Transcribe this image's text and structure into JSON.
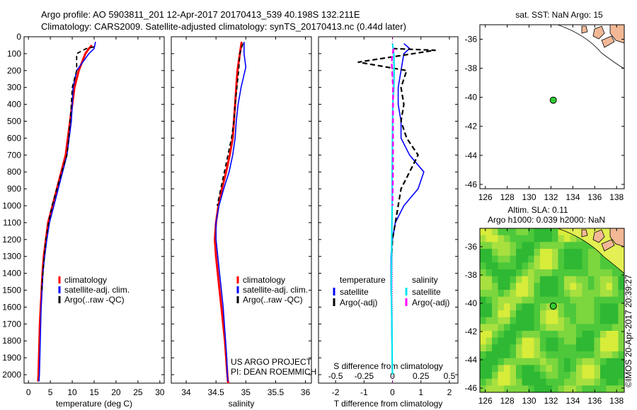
{
  "header": {
    "line1": "Argo profile: AO 5903811_201 12-Apr-2017 20170413_539 40.198S 132.211E",
    "line2": "Climatology: CARS2009. Satellite-adjusted climatology: synTS_20170413.nc (0.44d later)"
  },
  "project": {
    "line1": "US ARGO PROJECT",
    "line2": "PI: DEAN ROEMMICH"
  },
  "credit": "©IMOS 20-Apr-2017 20:39:27",
  "colors": {
    "climatology": "#ff0000",
    "satellite": "#0000ff",
    "argo": "#000000",
    "salinity_sat": "#00e5ee",
    "salinity_argo": "#ff00ff",
    "land": "#f2b896",
    "float": "#33cc33"
  },
  "chart_data": [
    {
      "type": "line",
      "xlabel": "temperature (deg C)",
      "ylim": [
        2050,
        0
      ],
      "xlim": [
        -1,
        31
      ],
      "xticks": [
        0,
        5,
        10,
        15,
        20,
        25,
        30
      ],
      "yticks": [
        0,
        100,
        200,
        300,
        400,
        500,
        600,
        700,
        800,
        900,
        1000,
        1100,
        1200,
        1300,
        1400,
        1500,
        1600,
        1700,
        1800,
        1900,
        2000
      ],
      "legend": [
        "climatology",
        "satellite-adj. clim.",
        "Argo(..raw -QC)"
      ],
      "series": [
        {
          "name": "climatology",
          "style": "solid",
          "x": [
            14.5,
            13.8,
            13.0,
            11.5,
            10.5,
            10.0,
            9.5,
            9.0,
            8.5,
            7.5,
            6.5,
            5.5,
            4.5,
            4.0,
            3.5,
            3.2,
            3.0,
            2.8,
            2.6,
            2.5,
            2.4,
            2.3,
            2.2
          ],
          "y": [
            50,
            70,
            100,
            200,
            300,
            400,
            500,
            600,
            700,
            800,
            900,
            1000,
            1100,
            1200,
            1300,
            1400,
            1500,
            1600,
            1700,
            1800,
            1900,
            2000,
            2040
          ]
        },
        {
          "name": "satellite-adj. clim.",
          "style": "solid",
          "x": [
            15.3,
            15.0,
            13.8,
            11.0,
            10.2,
            10.0,
            9.8,
            9.3,
            8.8,
            7.8,
            6.8,
            5.8,
            4.8,
            4.2,
            3.7,
            3.3,
            3.1,
            2.9,
            2.8,
            2.7,
            2.6,
            2.5,
            2.4
          ],
          "y": [
            30,
            70,
            100,
            200,
            300,
            400,
            500,
            600,
            700,
            800,
            900,
            1000,
            1100,
            1200,
            1300,
            1400,
            1500,
            1600,
            1700,
            1800,
            1900,
            2000,
            2040
          ]
        },
        {
          "name": "Argo(..raw -QC)",
          "style": "dashed",
          "x": [
            15.0,
            13.2,
            11.0,
            11.0,
            10.0,
            9.8,
            9.5,
            9.2,
            8.8,
            7.6,
            6.5,
            5.4,
            4.6,
            4.0,
            3.6,
            3.3,
            3.0
          ],
          "y": [
            60,
            70,
            100,
            200,
            300,
            400,
            500,
            600,
            700,
            800,
            900,
            1000,
            1100,
            1200,
            1300,
            1400,
            1500
          ]
        }
      ]
    },
    {
      "type": "line",
      "xlabel": "salinity",
      "ylim": [
        2050,
        0
      ],
      "xlim": [
        33.75,
        36.1
      ],
      "xticks": [
        34,
        34.5,
        35,
        35.5,
        36
      ],
      "legend": [
        "climatology",
        "satellite-adj. clim.",
        "Argo(..raw -QC)"
      ],
      "series": [
        {
          "name": "climatology",
          "style": "solid",
          "x": [
            34.93,
            34.9,
            34.86,
            34.84,
            34.82,
            34.8,
            34.78,
            34.73,
            34.67,
            34.6,
            34.54,
            34.5,
            34.48,
            34.5,
            34.53,
            34.56,
            34.59,
            34.62,
            34.65,
            34.67,
            34.69,
            34.7,
            34.71
          ],
          "y": [
            30,
            100,
            200,
            300,
            400,
            500,
            600,
            700,
            800,
            900,
            1000,
            1100,
            1200,
            1300,
            1400,
            1500,
            1600,
            1700,
            1800,
            1900,
            2000,
            2040,
            2050
          ]
        },
        {
          "name": "satellite-adj. clim.",
          "style": "solid",
          "x": [
            34.97,
            34.97,
            35.0,
            34.92,
            34.87,
            34.84,
            34.82,
            34.78,
            34.72,
            34.63,
            34.55,
            34.5,
            34.5,
            34.53,
            34.56,
            34.59,
            34.62,
            34.64,
            34.66,
            34.68,
            34.69,
            34.7
          ],
          "y": [
            30,
            100,
            180,
            300,
            400,
            500,
            600,
            700,
            800,
            900,
            1000,
            1100,
            1200,
            1300,
            1400,
            1500,
            1600,
            1700,
            1800,
            1900,
            2000,
            2040
          ]
        },
        {
          "name": "Argo(..raw -QC)",
          "style": "dashed",
          "x": [
            34.95,
            34.9,
            34.88,
            34.85,
            34.82,
            34.8,
            34.76,
            34.7,
            34.64,
            34.58,
            34.52
          ],
          "y": [
            40,
            100,
            200,
            300,
            400,
            500,
            600,
            700,
            800,
            900,
            1000
          ]
        }
      ]
    },
    {
      "type": "line",
      "xlabel": "T difference from climatology",
      "x2label": "S difference from climatology",
      "ylim": [
        2050,
        0
      ],
      "xlim": [
        -2.6,
        2.3
      ],
      "xticks": [
        -2,
        -1,
        0,
        1,
        2
      ],
      "x2lim": [
        -0.65,
        0.575
      ],
      "x2ticks": [
        -0.5,
        -0.25,
        0,
        0.25,
        0.5
      ],
      "legend_titles": [
        "temperature",
        "salinity"
      ],
      "legend": [
        "satellite",
        "Argo(-adj)",
        "satellite",
        "Argo(-adj)"
      ],
      "series": [
        {
          "name": "satellite",
          "group": "temperature",
          "style": "solid",
          "x": [
            0.4,
            0.6,
            0.4,
            0.3,
            0.2,
            0.2,
            0.3,
            0.3,
            0.6,
            1.1,
            0.9,
            0.4,
            0.1,
            0.0,
            -0.05,
            -0.05,
            -0.05,
            -0.03,
            -0.02,
            0.0
          ],
          "y": [
            40,
            70,
            100,
            200,
            300,
            400,
            500,
            600,
            700,
            800,
            900,
            1000,
            1100,
            1200,
            1300,
            1400,
            1500,
            1600,
            1800,
            2000
          ]
        },
        {
          "name": "Argo(-adj)",
          "group": "temperature",
          "style": "dashed",
          "x": [
            0.0,
            1.5,
            -1.2,
            0.5,
            0.3,
            0.4,
            0.3,
            0.5,
            0.9,
            0.6,
            0.3,
            0.2,
            0.1,
            0.0,
            -0.03
          ],
          "y": [
            70,
            80,
            150,
            200,
            300,
            400,
            500,
            600,
            700,
            800,
            900,
            1000,
            1100,
            1200,
            1300
          ]
        },
        {
          "name": "satellite",
          "group": "salinity",
          "style": "solid",
          "x": [
            0.0,
            0.05,
            0.06,
            0.05,
            0.01,
            0.0,
            -0.01,
            -0.01,
            -0.02,
            -0.03,
            -0.04,
            -0.03,
            -0.02,
            -0.01,
            0.0
          ],
          "y": [
            40,
            100,
            200,
            300,
            400,
            600,
            800,
            1000,
            1100,
            1300,
            1500,
            1600,
            1700,
            1900,
            2000
          ]
        },
        {
          "name": "Argo(-adj)",
          "group": "salinity",
          "style": "dashed",
          "x": [
            0.05,
            0.0,
            -0.03,
            0.02,
            0.02,
            0.02,
            0.02,
            0.01,
            0.0
          ],
          "y": [
            70,
            100,
            150,
            300,
            500,
            700,
            800,
            900,
            1000
          ]
        }
      ]
    },
    {
      "type": "map",
      "title": "sat. SST: NaN Argo: 15",
      "xlim": [
        125.5,
        138.7
      ],
      "ylim": [
        -46.3,
        -35.0
      ],
      "xticks": [
        126,
        128,
        130,
        132,
        134,
        136,
        138
      ],
      "yticks": [
        -36,
        -38,
        -40,
        -42,
        -44,
        -46
      ],
      "float": {
        "lon": 132.211,
        "lat": -40.198
      }
    },
    {
      "type": "heatmap",
      "title": "Altim. SLA: 0.11",
      "subtitle": "Argo h1000: 0.039 h2000: NaN",
      "xlim": [
        125.5,
        138.7
      ],
      "ylim": [
        -46.3,
        -34.7
      ],
      "xticks": [
        126,
        128,
        130,
        132,
        134,
        136,
        138
      ],
      "yticks": [
        -36,
        -38,
        -40,
        -42,
        -44,
        -46
      ],
      "float": {
        "lon": 132.211,
        "lat": -40.198
      }
    }
  ]
}
